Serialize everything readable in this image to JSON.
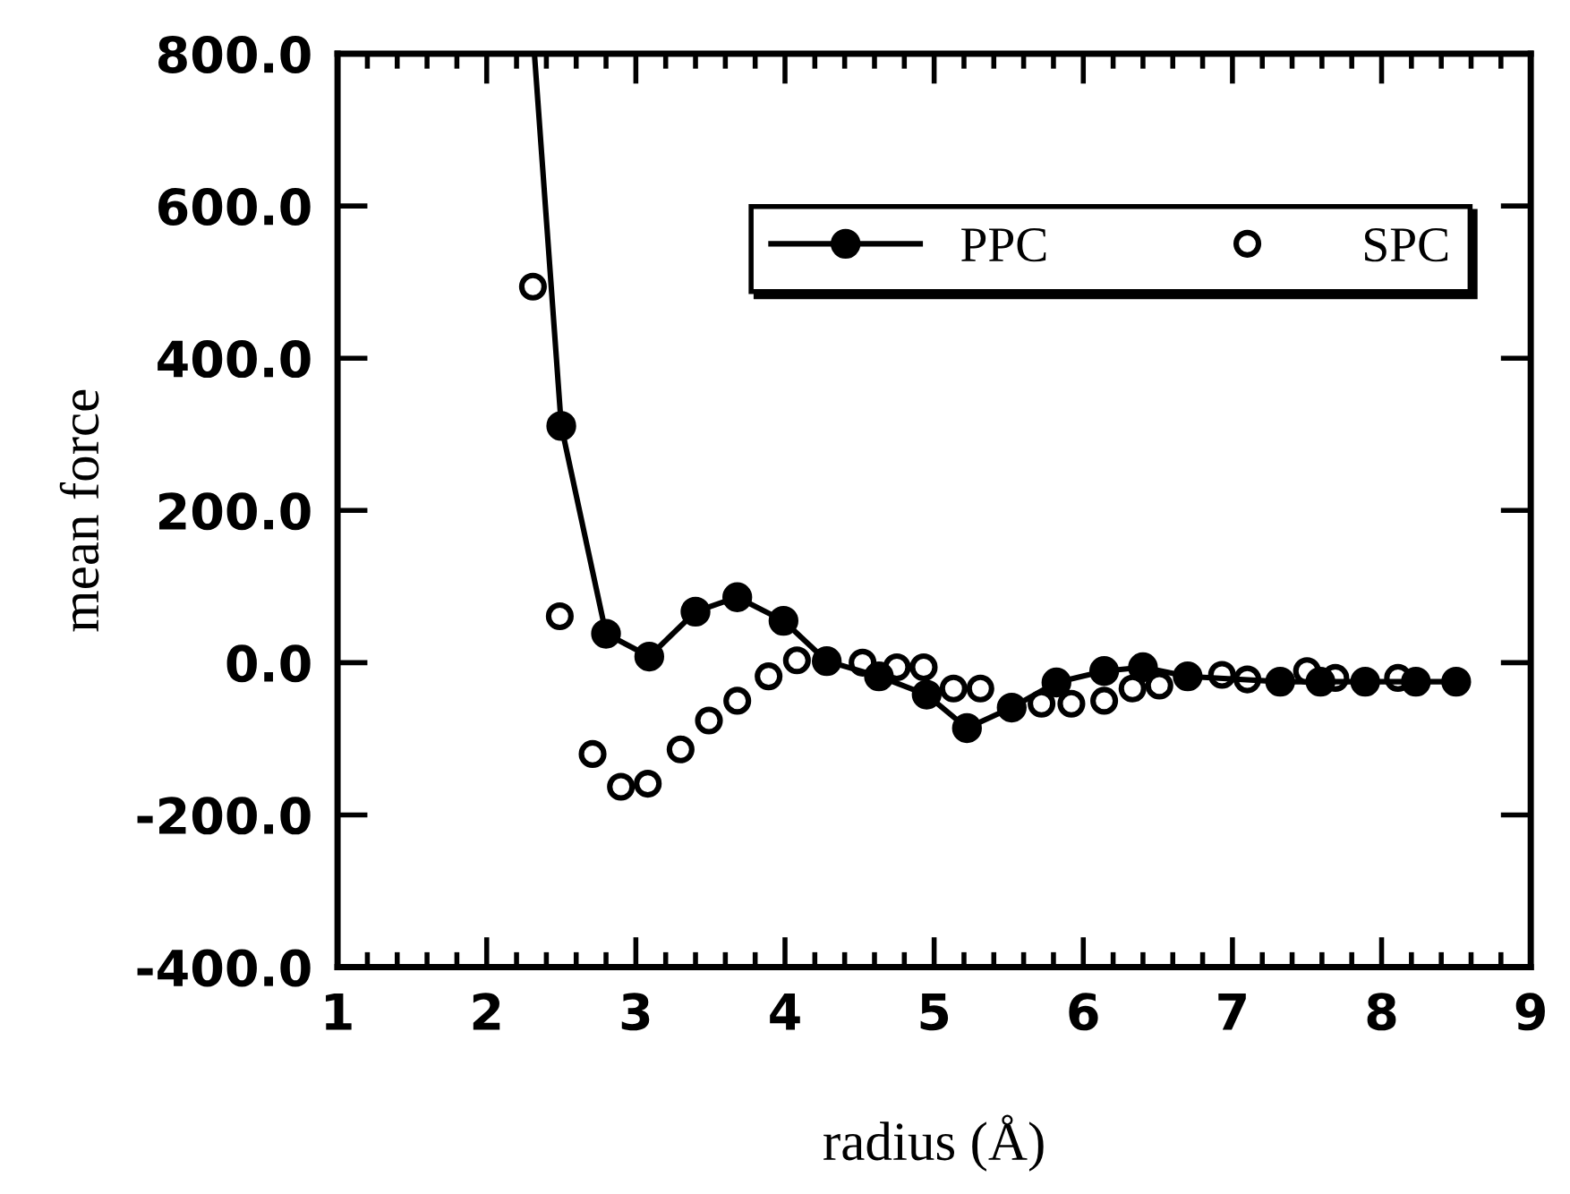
{
  "chart_data": {
    "type": "line",
    "xlabel": "radius (Å)",
    "ylabel": "mean force",
    "xlim": [
      1,
      9
    ],
    "xticks": [
      1,
      2,
      3,
      4,
      5,
      6,
      7,
      8,
      9
    ],
    "ylim": [
      -400,
      800
    ],
    "yticks": [
      {
        "value": -400,
        "label": "-400.0"
      },
      {
        "value": -200,
        "label": "-200.0"
      },
      {
        "value": 0,
        "label": "0.0"
      },
      {
        "value": 200,
        "label": "200.0"
      },
      {
        "value": 400,
        "label": "400.0"
      },
      {
        "value": 600,
        "label": "600.0"
      },
      {
        "value": 800,
        "label": "800.0"
      }
    ],
    "grid": false,
    "legend": "top right",
    "marker": "circle",
    "line_style": "solid",
    "series": [
      {
        "name": "PPC",
        "color": "#000000",
        "x": [
          2.32,
          2.5,
          2.8,
          3.09,
          3.4,
          3.68,
          3.99,
          4.28,
          4.63,
          4.95,
          5.22,
          5.52,
          5.82,
          6.14,
          6.4,
          6.7,
          7.32,
          7.59,
          7.89,
          8.23,
          8.5
        ],
        "values": [
          800,
          311,
          38,
          8,
          67,
          86,
          55,
          2,
          -18,
          -42,
          -86,
          -59,
          -26,
          -11,
          -6,
          -18,
          -25,
          -25,
          -25,
          -25,
          -25
        ]
      },
      {
        "name": "SPC",
        "type": "scatter",
        "color": "#000000",
        "x": [
          2.31,
          2.49,
          2.71,
          2.9,
          3.08,
          3.3,
          3.49,
          3.68,
          3.89,
          4.08,
          4.52,
          4.75,
          4.93,
          5.13,
          5.31,
          5.72,
          5.92,
          6.14,
          6.33,
          6.51,
          6.93,
          7.1,
          7.5,
          7.69,
          8.11
        ],
        "values": [
          494,
          61,
          -120,
          -163,
          -159,
          -114,
          -76,
          -50,
          -18,
          3,
          0,
          -6,
          -6,
          -34,
          -34,
          -54,
          -54,
          -50,
          -34,
          -30,
          -16,
          -22,
          -11,
          -20,
          -20
        ]
      }
    ]
  }
}
